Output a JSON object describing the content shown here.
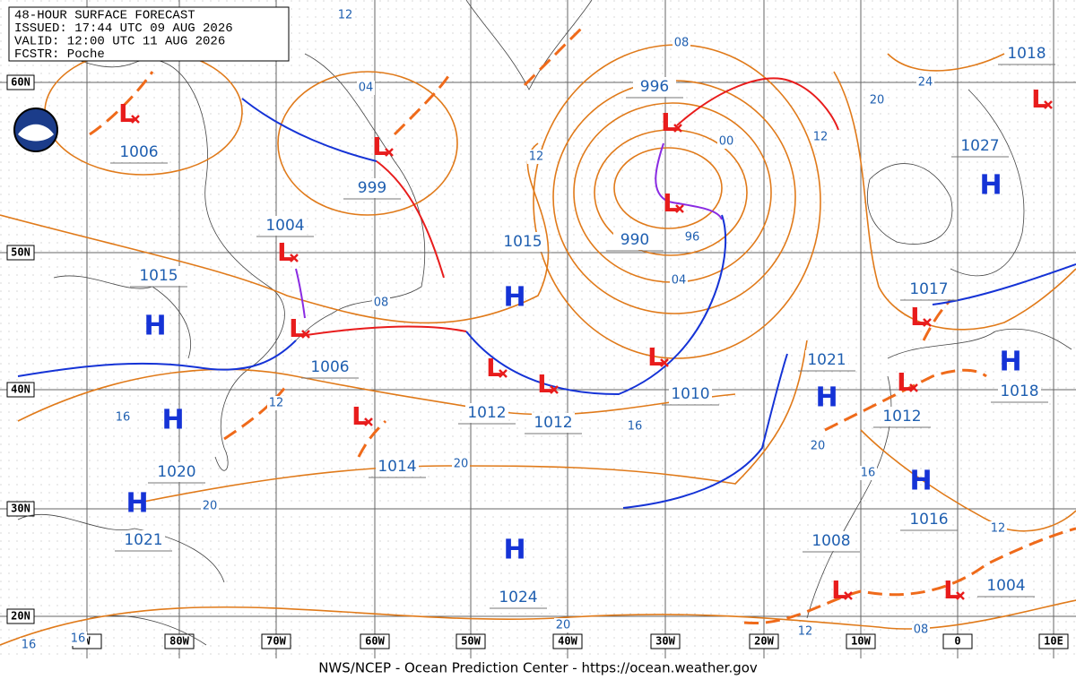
{
  "header": {
    "lines": [
      "48-HOUR SURFACE FORECAST",
      "ISSUED: 17:44 UTC 09 AUG 2026",
      "VALID:  12:00 UTC 11 AUG 2026",
      "FCSTR:  Poche"
    ]
  },
  "map": {
    "latitudes": [
      "60N",
      "50N",
      "40N",
      "30N",
      "20N"
    ],
    "longitudes": [
      "W",
      "80W",
      "70W",
      "60W",
      "50W",
      "40W",
      "30W",
      "20W",
      "10W",
      "0",
      "10E"
    ],
    "centers": [
      {
        "symbol": "L",
        "pressure": "1006"
      },
      {
        "symbol": "L",
        "pressure": "999"
      },
      {
        "symbol": "L",
        "pressure": "1004"
      },
      {
        "symbol": "H",
        "pressure": "1015"
      },
      {
        "symbol": "L",
        "pressure": "1006"
      },
      {
        "symbol": "H",
        "pressure": "1015"
      },
      {
        "symbol": "L",
        "pressure": "996"
      },
      {
        "symbol": "L",
        "pressure": "990"
      },
      {
        "symbol": "L",
        "pressure": "1010"
      },
      {
        "symbol": "L",
        "pressure": "1012"
      },
      {
        "symbol": "L",
        "pressure": "1012"
      },
      {
        "symbol": "L",
        "pressure": "1014"
      },
      {
        "symbol": "H",
        "pressure": "1020"
      },
      {
        "symbol": "H",
        "pressure": "1021"
      },
      {
        "symbol": "H",
        "pressure": "1024"
      },
      {
        "symbol": "H",
        "pressure": "1021"
      },
      {
        "symbol": "L",
        "pressure": "1012"
      },
      {
        "symbol": "H",
        "pressure": "1018"
      },
      {
        "symbol": "L",
        "pressure": "1017"
      },
      {
        "symbol": "H",
        "pressure": "1027"
      },
      {
        "symbol": "L",
        "pressure": "1018"
      },
      {
        "symbol": "H",
        "pressure": "1016"
      },
      {
        "symbol": "L",
        "pressure": "1008"
      },
      {
        "symbol": "L",
        "pressure": "1004"
      }
    ],
    "isobar_labels": [
      "04",
      "08",
      "00",
      "12",
      "20",
      "24",
      "12",
      "96",
      "04",
      "08",
      "12",
      "16",
      "16",
      "20",
      "20",
      "20",
      "16",
      "12",
      "20",
      "12",
      "08",
      "16",
      "16",
      "12"
    ]
  },
  "footer": "NWS/NCEP - Ocean Prediction Center - https://ocean.weather.gov"
}
